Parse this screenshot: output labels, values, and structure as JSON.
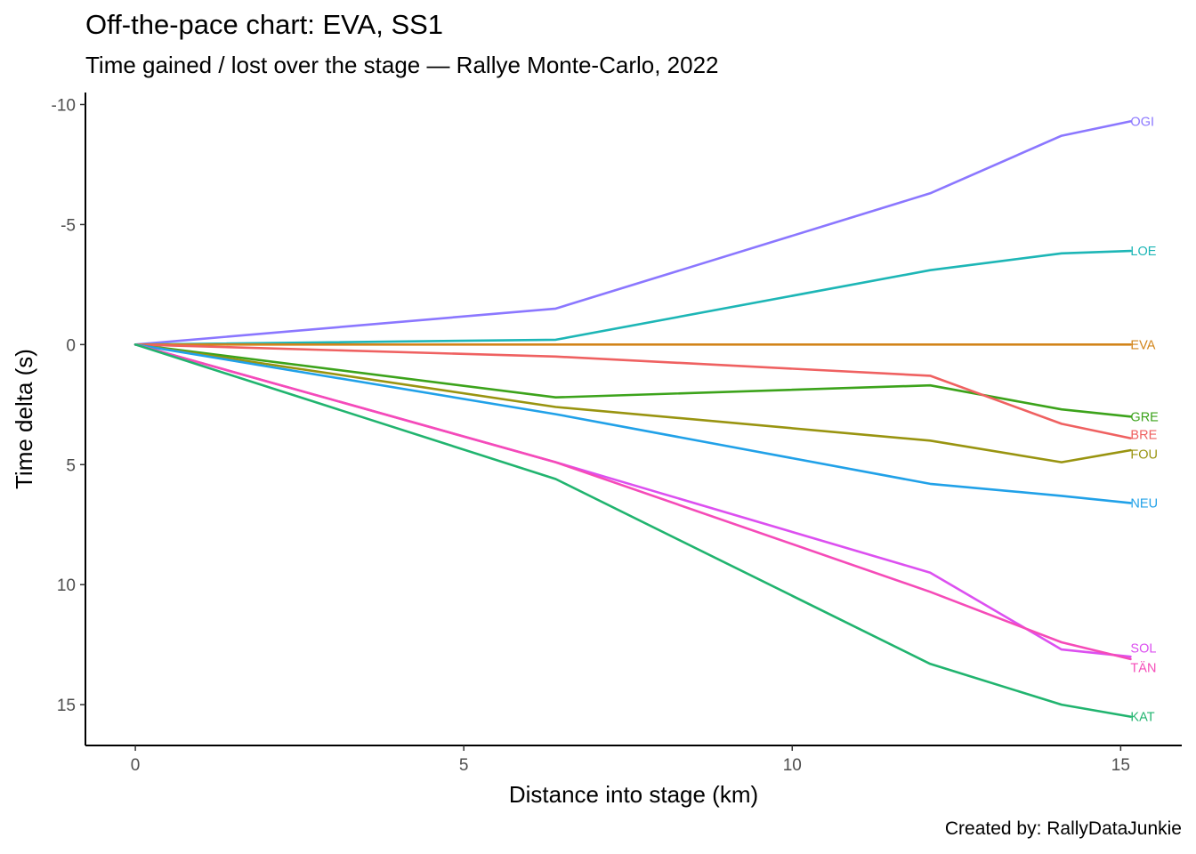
{
  "chart_data": {
    "type": "line",
    "title": "Off-the-pace chart: EVA, SS1",
    "subtitle": "Time gained / lost over the stage — Rallye Monte-Carlo, 2022",
    "xlabel": "Distance into stage (km)",
    "ylabel": "Time delta (s)",
    "caption": "Created by: RallyDataJunkie",
    "xlim": [
      -0.76,
      15.93
    ],
    "ylim": [
      -10.5,
      16.7
    ],
    "y_reversed": true,
    "grid": false,
    "legend": "none (series labeled at line ends)",
    "x_ticks": [
      0,
      5,
      10,
      15
    ],
    "x_tick_labels": [
      "0",
      "5",
      "10",
      "15"
    ],
    "y_ticks": [
      -10,
      -5,
      0,
      5,
      10,
      15
    ],
    "y_tick_labels": [
      "-10",
      "-5",
      "0",
      "5",
      "10",
      "15"
    ],
    "series": [
      {
        "name": "OGI",
        "color": "#8b77ff",
        "x": [
          0,
          6.4,
          12.1,
          14.1,
          15.15
        ],
        "y": [
          0,
          -1.5,
          -6.3,
          -8.7,
          -9.3
        ]
      },
      {
        "name": "LOE",
        "color": "#1db6b6",
        "x": [
          0,
          6.4,
          12.1,
          14.1,
          15.15
        ],
        "y": [
          0,
          -0.2,
          -3.1,
          -3.8,
          -3.9
        ]
      },
      {
        "name": "EVA",
        "color": "#d2841a",
        "x": [
          0,
          6.4,
          12.1,
          14.1,
          15.15
        ],
        "y": [
          0,
          0,
          0,
          0,
          0
        ]
      },
      {
        "name": "GRE",
        "color": "#3ca31b",
        "x": [
          0,
          6.4,
          12.1,
          14.1,
          15.15
        ],
        "y": [
          0,
          2.2,
          1.7,
          2.7,
          3.0
        ]
      },
      {
        "name": "BRE",
        "color": "#ef6161",
        "x": [
          0,
          6.4,
          12.1,
          14.1,
          15.15
        ],
        "y": [
          0,
          0.5,
          1.3,
          3.3,
          3.9
        ]
      },
      {
        "name": "FOU",
        "color": "#999410",
        "x": [
          0,
          6.4,
          12.1,
          14.1,
          15.15
        ],
        "y": [
          0,
          2.6,
          4.0,
          4.9,
          4.4
        ]
      },
      {
        "name": "NEU",
        "color": "#21a1e8",
        "x": [
          0,
          6.4,
          12.1,
          14.1,
          15.15
        ],
        "y": [
          0,
          2.9,
          5.8,
          6.3,
          6.6
        ]
      },
      {
        "name": "SOL",
        "color": "#dc50f0",
        "x": [
          0,
          6.4,
          12.1,
          14.1,
          15.15
        ],
        "y": [
          0,
          4.9,
          9.5,
          12.7,
          13.0
        ]
      },
      {
        "name": "TÄN",
        "color": "#f54bb8",
        "x": [
          0,
          6.4,
          12.1,
          14.1,
          15.15
        ],
        "y": [
          0,
          4.9,
          10.3,
          12.4,
          13.1
        ]
      },
      {
        "name": "KAT",
        "color": "#21b46f",
        "x": [
          0,
          6.4,
          12.1,
          14.1,
          15.15
        ],
        "y": [
          0,
          5.6,
          13.3,
          15.0,
          15.5
        ]
      }
    ]
  }
}
